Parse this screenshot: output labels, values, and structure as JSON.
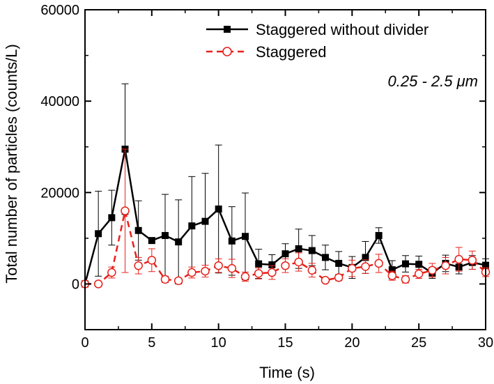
{
  "chart_data": {
    "type": "line",
    "xlabel": "Time (s)",
    "ylabel": "Total number of particles (counts/L)",
    "xlim": [
      0,
      30
    ],
    "ylim": [
      -10000,
      60000
    ],
    "xticks": [
      0,
      5,
      10,
      15,
      20,
      25,
      30
    ],
    "yticks": [
      0,
      20000,
      40000,
      60000
    ],
    "xtick_labels": [
      "0",
      "5",
      "10",
      "15",
      "20",
      "25",
      "30"
    ],
    "ytick_labels": [
      "0",
      "20000",
      "40000",
      "60000"
    ],
    "annotation": "0.25 - 2.5 μm",
    "legend_position": "top-right",
    "series": [
      {
        "name": "Staggered without divider",
        "color": "#000000",
        "marker": "filled-square",
        "line": "solid",
        "x": [
          0,
          1,
          2,
          3,
          4,
          5,
          6,
          7,
          8,
          9,
          10,
          11,
          12,
          13,
          14,
          15,
          16,
          17,
          18,
          19,
          20,
          21,
          22,
          23,
          24,
          25,
          26,
          27,
          28,
          29,
          30
        ],
        "values": [
          0,
          11000,
          14500,
          29500,
          11700,
          9500,
          10600,
          9200,
          12700,
          13700,
          16400,
          9400,
          10400,
          4400,
          4200,
          6600,
          7700,
          7300,
          5800,
          4500,
          3600,
          5800,
          10600,
          3100,
          4400,
          4300,
          2400,
          4500,
          3700,
          4700,
          4100
        ],
        "errors": [
          0,
          9300,
          6000,
          14300,
          6500,
          0,
          9000,
          9200,
          10800,
          10500,
          14000,
          7500,
          9500,
          3200,
          2200,
          2200,
          4300,
          3300,
          2700,
          2600,
          2400,
          3500,
          1700,
          2000,
          1800,
          1800,
          1200,
          1800,
          1500,
          1500,
          1400
        ]
      },
      {
        "name": "Staggered",
        "color": "#e8201a",
        "marker": "open-circle",
        "line": "dashed",
        "x": [
          0,
          1,
          2,
          3,
          4,
          5,
          6,
          7,
          8,
          9,
          10,
          11,
          12,
          13,
          14,
          15,
          16,
          17,
          18,
          19,
          20,
          21,
          22,
          23,
          24,
          25,
          26,
          27,
          28,
          29,
          30
        ],
        "values": [
          0,
          0,
          2500,
          16000,
          4000,
          5200,
          1000,
          700,
          2500,
          2800,
          4000,
          3400,
          1600,
          2300,
          2500,
          4000,
          4800,
          3000,
          800,
          1400,
          3400,
          3800,
          4500,
          1800,
          1000,
          2200,
          3000,
          4000,
          5400,
          5200,
          2600
        ],
        "errors": [
          0,
          500,
          1200,
          13500,
          1800,
          2500,
          700,
          500,
          1200,
          1300,
          1500,
          2000,
          1000,
          1200,
          1500,
          1500,
          2000,
          1500,
          500,
          700,
          1800,
          1500,
          2000,
          1000,
          800,
          1000,
          1500,
          1800,
          2600,
          2000,
          1000
        ]
      }
    ]
  }
}
